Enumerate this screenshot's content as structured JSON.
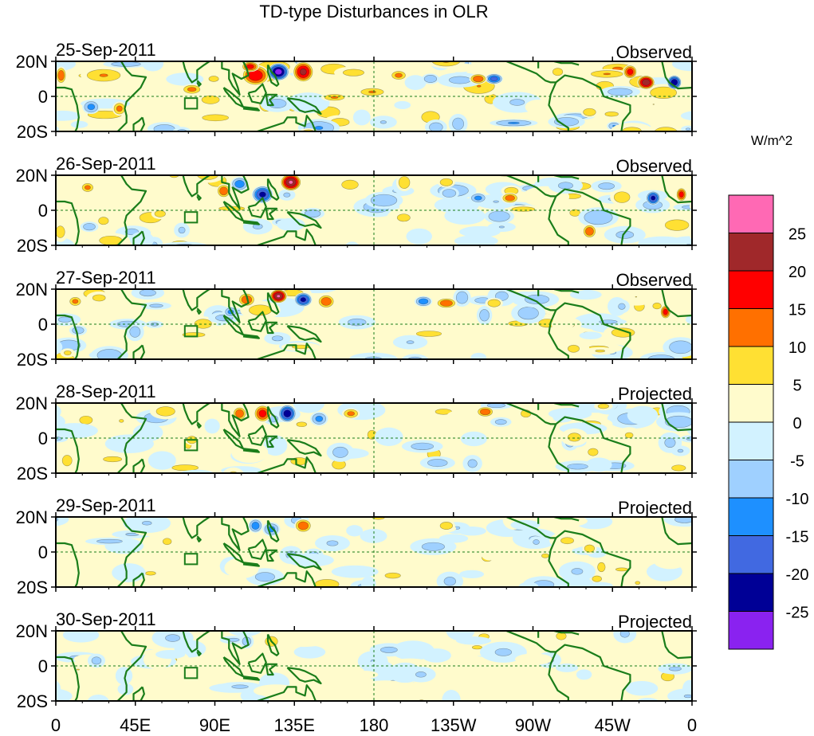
{
  "chart_data": {
    "type": "heatmap",
    "title": "TD-type Disturbances in OLR",
    "units_label": "W/m^2",
    "x_ticks": [
      "0",
      "45E",
      "90E",
      "135E",
      "180",
      "135W",
      "90W",
      "45W",
      "0"
    ],
    "x_tick_lons": [
      0,
      45,
      90,
      135,
      180,
      225,
      270,
      315,
      360
    ],
    "y_ticks": [
      "20N",
      "0",
      "20S"
    ],
    "y_tick_lats": [
      20,
      0,
      -20
    ],
    "lon_range": [
      0,
      360
    ],
    "lat_range": [
      -20,
      20
    ],
    "colorbar": {
      "levels": [
        "25",
        "20",
        "15",
        "10",
        "5",
        "0",
        "-5",
        "-10",
        "-15",
        "-20",
        "-25"
      ],
      "colors": [
        "#FF69B4",
        "#A0282A",
        "#FF0000",
        "#FF7000",
        "#FFE033",
        "#FFFBCC",
        "#D2F2FF",
        "#9FD0FF",
        "#1E90FF",
        "#4169E1",
        "#000096",
        "#8A22F0"
      ]
    },
    "reference_box": {
      "lon": [
        73,
        80
      ],
      "lat": [
        -7,
        -1
      ]
    },
    "panels": [
      {
        "date": "25-Sep-2011",
        "kind": "Observed",
        "features": [
          [
            113,
            12,
            20,
            8,
            6
          ],
          [
            126,
            14,
            -28,
            6,
            5
          ],
          [
            140,
            14,
            22,
            6,
            6
          ],
          [
            110,
            17,
            18,
            5,
            3
          ],
          [
            77,
            4,
            12,
            6,
            3
          ],
          [
            36,
            -7,
            12,
            4,
            4
          ],
          [
            20,
            -6,
            -12,
            5,
            4
          ],
          [
            3,
            12,
            15,
            3,
            5
          ],
          [
            248,
            10,
            -18,
            5,
            3
          ],
          [
            239,
            10,
            15,
            5,
            3
          ],
          [
            334,
            8,
            25,
            5,
            4
          ],
          [
            350,
            8,
            -25,
            4,
            4
          ],
          [
            325,
            14,
            18,
            4,
            4
          ],
          [
            302,
            -9,
            10,
            5,
            3
          ],
          [
            194,
            12,
            12,
            5,
            3
          ],
          [
            212,
            10,
            -10,
            5,
            3
          ],
          [
            284,
            14,
            10,
            4,
            3
          ]
        ]
      },
      {
        "date": "26-Sep-2011",
        "kind": "Observed",
        "features": [
          [
            117,
            9,
            -22,
            6,
            5
          ],
          [
            133,
            16,
            26,
            6,
            5
          ],
          [
            104,
            15,
            -14,
            5,
            4
          ],
          [
            95,
            11,
            15,
            4,
            4
          ],
          [
            239,
            7,
            -12,
            5,
            3
          ],
          [
            257,
            7,
            14,
            5,
            3
          ],
          [
            338,
            7,
            -22,
            4,
            4
          ],
          [
            354,
            9,
            18,
            3,
            4
          ],
          [
            221,
            16,
            10,
            5,
            3
          ],
          [
            18,
            13,
            12,
            4,
            3
          ],
          [
            27,
            -6,
            10,
            4,
            3
          ],
          [
            302,
            -12,
            15,
            4,
            4
          ],
          [
            59,
            -2,
            8,
            5,
            3
          ]
        ]
      },
      {
        "date": "27-Sep-2011",
        "kind": "Observed",
        "features": [
          [
            126,
            16,
            26,
            5,
            4
          ],
          [
            140,
            14,
            -22,
            5,
            4
          ],
          [
            153,
            13,
            15,
            5,
            4
          ],
          [
            108,
            14,
            15,
            5,
            4
          ],
          [
            99,
            7,
            -12,
            4,
            3
          ],
          [
            221,
            12,
            15,
            6,
            3
          ],
          [
            208,
            13,
            -14,
            5,
            3
          ],
          [
            345,
            7,
            18,
            3,
            4
          ],
          [
            11,
            13,
            12,
            4,
            3
          ],
          [
            248,
            12,
            10,
            5,
            3
          ]
        ]
      },
      {
        "date": "28-Sep-2011",
        "kind": "Projected",
        "features": [
          [
            131,
            14,
            -24,
            5,
            5
          ],
          [
            117,
            14,
            18,
            5,
            5
          ],
          [
            104,
            14,
            15,
            4,
            4
          ],
          [
            167,
            14,
            12,
            5,
            3
          ],
          [
            243,
            15,
            15,
            5,
            3
          ],
          [
            304,
            -8,
            10,
            4,
            3
          ],
          [
            77,
            -1,
            10,
            4,
            3
          ],
          [
            149,
            11,
            -12,
            5,
            4
          ],
          [
            266,
            14,
            10,
            4,
            3
          ]
        ]
      },
      {
        "date": "29-Sep-2011",
        "kind": "Projected",
        "features": [
          [
            140,
            15,
            15,
            5,
            4
          ],
          [
            122,
            13,
            -12,
            5,
            4
          ],
          [
            113,
            15,
            -14,
            4,
            4
          ],
          [
            221,
            15,
            10,
            5,
            3
          ],
          [
            302,
            2,
            10,
            4,
            3
          ],
          [
            63,
            6,
            8,
            4,
            3
          ]
        ]
      },
      {
        "date": "30-Sep-2011",
        "kind": "Projected",
        "features": [
          [
            122,
            14,
            10,
            5,
            4
          ],
          [
            108,
            14,
            -8,
            4,
            4
          ],
          [
            286,
            17,
            10,
            4,
            3
          ],
          [
            23,
            3,
            -7,
            5,
            4
          ]
        ]
      }
    ]
  }
}
